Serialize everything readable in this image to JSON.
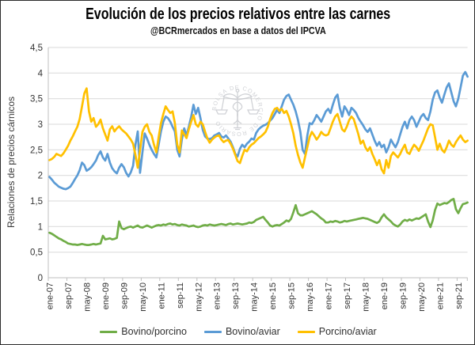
{
  "chart_data": {
    "type": "line",
    "title": "Evolución de los precios relativos entre las carnes",
    "subtitle": "@BCRmercados en base a datos del IPCVA",
    "ylabel": "Relaciones de precios cárnicos",
    "watermark_text": "BOLSA DE COMERCIO DE ROSARIO",
    "ylim": [
      0,
      4.5
    ],
    "grid": true,
    "legend_position": "bottom",
    "y_tick_labels": [
      "0",
      "0,5",
      "1",
      "1,5",
      "2",
      "2,5",
      "3",
      "3,5",
      "4",
      "4,5"
    ],
    "y_tick_values": [
      0,
      0.5,
      1,
      1.5,
      2,
      2.5,
      3,
      3.5,
      4,
      4.5
    ],
    "x_tick_labels": [
      "ene-07",
      "sep-07",
      "may-08",
      "ene-09",
      "sep-09",
      "may-10",
      "ene-11",
      "sep-11",
      "may-12",
      "ene-13",
      "sep-13",
      "may-14",
      "ene-15",
      "sep-15",
      "may-16",
      "ene-17",
      "sep-17",
      "may-18",
      "ene-19",
      "sep-19",
      "may-20",
      "ene-21",
      "sep-21"
    ],
    "x_tick_interval_months": 8,
    "x_start": "ene-07",
    "x_end": "ene-22",
    "frequency": "monthly",
    "colors": {
      "bovino_porcino": "#70AD47",
      "bovino_aviar": "#5B9BD5",
      "porcino_aviar": "#FFC000"
    },
    "series": [
      {
        "name": "Bovino/porcino",
        "color": "#70AD47",
        "values": [
          0.88,
          0.86,
          0.83,
          0.8,
          0.77,
          0.75,
          0.72,
          0.7,
          0.67,
          0.66,
          0.65,
          0.65,
          0.64,
          0.65,
          0.66,
          0.65,
          0.64,
          0.64,
          0.65,
          0.66,
          0.65,
          0.66,
          0.67,
          0.82,
          0.75,
          0.76,
          0.77,
          0.75,
          0.76,
          0.78,
          1.1,
          0.97,
          0.95,
          0.97,
          0.99,
          1.0,
          0.98,
          1.0,
          1.02,
          0.99,
          0.98,
          1.0,
          1.02,
          1.0,
          0.98,
          1.0,
          1.02,
          1.03,
          1.02,
          1.04,
          1.03,
          1.05,
          1.06,
          1.04,
          1.05,
          1.03,
          1.02,
          1.04,
          1.03,
          1.02,
          1.0,
          1.01,
          1.02,
          1.0,
          0.99,
          1.0,
          1.02,
          1.03,
          1.02,
          1.04,
          1.03,
          1.02,
          1.03,
          1.04,
          1.05,
          1.04,
          1.03,
          1.05,
          1.06,
          1.04,
          1.05,
          1.06,
          1.05,
          1.04,
          1.05,
          1.06,
          1.08,
          1.07,
          1.09,
          1.13,
          1.15,
          1.17,
          1.19,
          1.13,
          1.08,
          1.02,
          1.0,
          1.02,
          1.03,
          1.02,
          1.05,
          1.08,
          1.12,
          1.1,
          1.15,
          1.28,
          1.42,
          1.26,
          1.22,
          1.22,
          1.24,
          1.26,
          1.28,
          1.3,
          1.27,
          1.24,
          1.2,
          1.16,
          1.13,
          1.08,
          1.08,
          1.1,
          1.09,
          1.11,
          1.1,
          1.08,
          1.09,
          1.11,
          1.1,
          1.11,
          1.12,
          1.13,
          1.14,
          1.15,
          1.16,
          1.17,
          1.16,
          1.15,
          1.13,
          1.11,
          1.09,
          1.07,
          1.1,
          1.18,
          1.24,
          1.18,
          1.14,
          1.1,
          1.05,
          1.02,
          1.0,
          1.04,
          1.1,
          1.13,
          1.11,
          1.14,
          1.12,
          1.14,
          1.16,
          1.15,
          1.18,
          1.21,
          1.24,
          1.1,
          0.99,
          1.12,
          1.32,
          1.45,
          1.42,
          1.44,
          1.46,
          1.45,
          1.48,
          1.52,
          1.54,
          1.34,
          1.26,
          1.36,
          1.44,
          1.45,
          1.47
        ]
      },
      {
        "name": "Bovino/aviar",
        "color": "#5B9BD5",
        "values": [
          1.97,
          1.92,
          1.86,
          1.82,
          1.78,
          1.76,
          1.74,
          1.73,
          1.75,
          1.78,
          1.85,
          1.93,
          2.0,
          2.1,
          2.25,
          2.2,
          2.09,
          2.12,
          2.16,
          2.22,
          2.29,
          2.4,
          2.47,
          2.35,
          2.29,
          2.42,
          2.25,
          2.14,
          2.08,
          2.04,
          2.15,
          2.22,
          2.16,
          2.05,
          1.98,
          2.06,
          2.19,
          2.6,
          2.86,
          2.05,
          2.45,
          2.82,
          2.72,
          2.6,
          2.5,
          2.42,
          2.35,
          2.6,
          2.86,
          3.05,
          3.15,
          3.12,
          3.05,
          2.95,
          2.86,
          2.5,
          2.37,
          2.7,
          2.92,
          2.78,
          2.95,
          3.15,
          3.38,
          3.2,
          3.32,
          3.12,
          2.89,
          2.76,
          2.72,
          2.71,
          2.73,
          2.78,
          2.8,
          2.83,
          2.76,
          2.74,
          2.78,
          2.72,
          2.66,
          2.55,
          2.42,
          2.37,
          2.52,
          2.6,
          2.55,
          2.62,
          2.66,
          2.72,
          2.7,
          2.83,
          2.9,
          2.94,
          2.97,
          2.99,
          3.02,
          3.07,
          3.12,
          3.2,
          3.28,
          3.22,
          3.35,
          3.48,
          3.55,
          3.58,
          3.48,
          3.38,
          3.25,
          3.08,
          2.85,
          2.5,
          2.42,
          2.78,
          3.02,
          3.0,
          3.08,
          3.18,
          3.12,
          3.05,
          3.15,
          3.25,
          3.3,
          3.22,
          3.38,
          3.52,
          3.58,
          3.32,
          3.15,
          3.35,
          3.28,
          3.18,
          3.32,
          3.28,
          3.22,
          3.12,
          3.05,
          2.98,
          2.9,
          2.85,
          2.92,
          2.8,
          2.68,
          2.58,
          2.65,
          2.55,
          2.6,
          2.45,
          2.55,
          2.7,
          2.62,
          2.55,
          2.65,
          2.8,
          2.95,
          3.05,
          2.92,
          3.08,
          3.15,
          3.08,
          2.95,
          3.05,
          3.15,
          3.2,
          3.12,
          3.08,
          3.25,
          3.48,
          3.62,
          3.66,
          3.52,
          3.42,
          3.58,
          3.72,
          3.8,
          3.62,
          3.45,
          3.35,
          3.5,
          3.72,
          3.95,
          4.02,
          3.93
        ]
      },
      {
        "name": "Porcino/aviar",
        "color": "#FFC000",
        "values": [
          2.3,
          2.32,
          2.36,
          2.42,
          2.4,
          2.38,
          2.43,
          2.5,
          2.58,
          2.68,
          2.76,
          2.86,
          2.95,
          3.1,
          3.35,
          3.6,
          3.7,
          3.25,
          3.05,
          3.12,
          2.95,
          3.0,
          3.09,
          2.92,
          2.8,
          2.68,
          2.9,
          2.96,
          2.86,
          2.92,
          2.96,
          2.9,
          2.86,
          2.82,
          2.76,
          2.7,
          2.62,
          2.4,
          2.15,
          2.5,
          2.85,
          2.95,
          3.0,
          2.85,
          2.78,
          2.6,
          2.45,
          2.75,
          3.02,
          3.2,
          3.35,
          3.28,
          3.22,
          3.25,
          3.02,
          2.6,
          2.45,
          2.88,
          2.8,
          2.73,
          2.9,
          3.05,
          3.18,
          3.0,
          2.95,
          3.05,
          3.0,
          2.85,
          2.72,
          2.64,
          2.7,
          2.74,
          2.77,
          2.78,
          2.7,
          2.65,
          2.68,
          2.69,
          2.62,
          2.52,
          2.4,
          2.28,
          2.24,
          2.38,
          2.5,
          2.47,
          2.55,
          2.6,
          2.63,
          2.68,
          2.73,
          2.76,
          2.8,
          2.85,
          2.95,
          3.1,
          3.22,
          3.3,
          3.32,
          3.26,
          3.3,
          3.22,
          3.26,
          3.15,
          3.0,
          2.82,
          2.58,
          2.4,
          2.25,
          2.15,
          2.35,
          2.55,
          2.75,
          2.85,
          2.78,
          2.7,
          2.76,
          2.85,
          2.8,
          2.78,
          2.8,
          2.92,
          3.05,
          3.15,
          3.2,
          3.05,
          2.9,
          2.86,
          2.95,
          3.08,
          3.15,
          3.1,
          2.95,
          2.8,
          2.62,
          2.68,
          2.55,
          2.48,
          2.55,
          2.42,
          2.32,
          2.2,
          2.3,
          2.12,
          2.04,
          2.3,
          2.15,
          2.38,
          2.45,
          2.4,
          2.35,
          2.42,
          2.52,
          2.6,
          2.45,
          2.42,
          2.52,
          2.6,
          2.55,
          2.48,
          2.58,
          2.68,
          2.8,
          2.92,
          3.0,
          2.98,
          2.75,
          2.5,
          2.62,
          2.5,
          2.45,
          2.55,
          2.68,
          2.6,
          2.56,
          2.65,
          2.72,
          2.78,
          2.7,
          2.65,
          2.68
        ]
      }
    ]
  }
}
